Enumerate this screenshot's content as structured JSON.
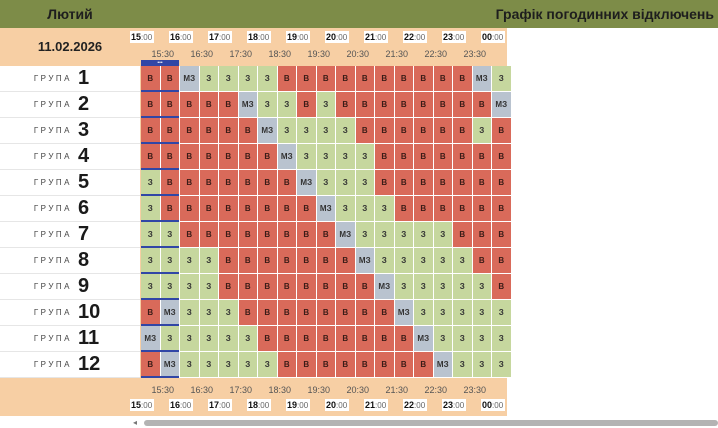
{
  "header": {
    "month": "Лютий",
    "title": "Графік погодинних відключень"
  },
  "date": "11.02.2026",
  "hours": [
    "15",
    "16",
    "17",
    "18",
    "19",
    "20",
    "21",
    "22",
    "23",
    "00"
  ],
  "minutes_label": "00",
  "half_hours": [
    "15:30",
    "16:30",
    "17:30",
    "18:30",
    "19:30",
    "20:30",
    "21:30",
    "22:30",
    "23:30"
  ],
  "now_label": "•••",
  "group_word": "ГРУПА",
  "state_labels": {
    "B": "В",
    "Z": "З",
    "M": "МЗ"
  },
  "groups": [
    {
      "num": "1",
      "cells": [
        "B",
        "B",
        "M",
        "Z",
        "Z",
        "Z",
        "Z",
        "B",
        "B",
        "B",
        "B",
        "B",
        "B",
        "B",
        "B",
        "B",
        "B",
        "M",
        "Z"
      ]
    },
    {
      "num": "2",
      "cells": [
        "B",
        "B",
        "B",
        "B",
        "B",
        "M",
        "Z",
        "Z",
        "B",
        "Z",
        "B",
        "B",
        "B",
        "B",
        "B",
        "B",
        "B",
        "B",
        "M"
      ]
    },
    {
      "num": "3",
      "cells": [
        "B",
        "B",
        "B",
        "B",
        "B",
        "B",
        "M",
        "Z",
        "Z",
        "Z",
        "Z",
        "B",
        "B",
        "B",
        "B",
        "B",
        "B",
        "Z",
        "B"
      ]
    },
    {
      "num": "4",
      "cells": [
        "B",
        "B",
        "B",
        "B",
        "B",
        "B",
        "B",
        "M",
        "Z",
        "Z",
        "Z",
        "Z",
        "B",
        "B",
        "B",
        "B",
        "B",
        "B",
        "B"
      ]
    },
    {
      "num": "5",
      "cells": [
        "Z",
        "B",
        "B",
        "B",
        "B",
        "B",
        "B",
        "B",
        "M",
        "Z",
        "Z",
        "Z",
        "B",
        "B",
        "B",
        "B",
        "B",
        "B",
        "B"
      ]
    },
    {
      "num": "6",
      "cells": [
        "Z",
        "B",
        "B",
        "B",
        "B",
        "B",
        "B",
        "B",
        "B",
        "M",
        "Z",
        "Z",
        "Z",
        "B",
        "B",
        "B",
        "B",
        "B",
        "B"
      ]
    },
    {
      "num": "7",
      "cells": [
        "Z",
        "Z",
        "B",
        "B",
        "B",
        "B",
        "B",
        "B",
        "B",
        "B",
        "M",
        "Z",
        "Z",
        "Z",
        "Z",
        "Z",
        "B",
        "B",
        "B"
      ]
    },
    {
      "num": "8",
      "cells": [
        "Z",
        "Z",
        "Z",
        "Z",
        "B",
        "B",
        "B",
        "B",
        "B",
        "B",
        "B",
        "M",
        "Z",
        "Z",
        "Z",
        "Z",
        "Z",
        "B",
        "B"
      ]
    },
    {
      "num": "9",
      "cells": [
        "Z",
        "Z",
        "Z",
        "Z",
        "B",
        "B",
        "B",
        "B",
        "B",
        "B",
        "B",
        "B",
        "M",
        "Z",
        "Z",
        "Z",
        "Z",
        "Z",
        "B"
      ]
    },
    {
      "num": "10",
      "cells": [
        "B",
        "M",
        "Z",
        "Z",
        "Z",
        "B",
        "B",
        "B",
        "B",
        "B",
        "B",
        "B",
        "B",
        "M",
        "Z",
        "Z",
        "Z",
        "Z",
        "Z"
      ]
    },
    {
      "num": "11",
      "cells": [
        "M",
        "Z",
        "Z",
        "Z",
        "Z",
        "Z",
        "B",
        "B",
        "B",
        "B",
        "B",
        "B",
        "B",
        "B",
        "M",
        "Z",
        "Z",
        "Z",
        "Z"
      ]
    },
    {
      "num": "12",
      "cells": [
        "B",
        "M",
        "Z",
        "Z",
        "Z",
        "Z",
        "Z",
        "B",
        "B",
        "B",
        "B",
        "B",
        "B",
        "B",
        "B",
        "M",
        "Z",
        "Z",
        "Z"
      ]
    }
  ],
  "colors": {
    "B": "#d96a5a",
    "Z": "#c6d79e",
    "M": "#b9c3cf",
    "header": "#7d8c48",
    "panel": "#f7cfa4",
    "now": "#3146a6"
  },
  "scrollbar": {
    "left_arrow": "◂"
  }
}
